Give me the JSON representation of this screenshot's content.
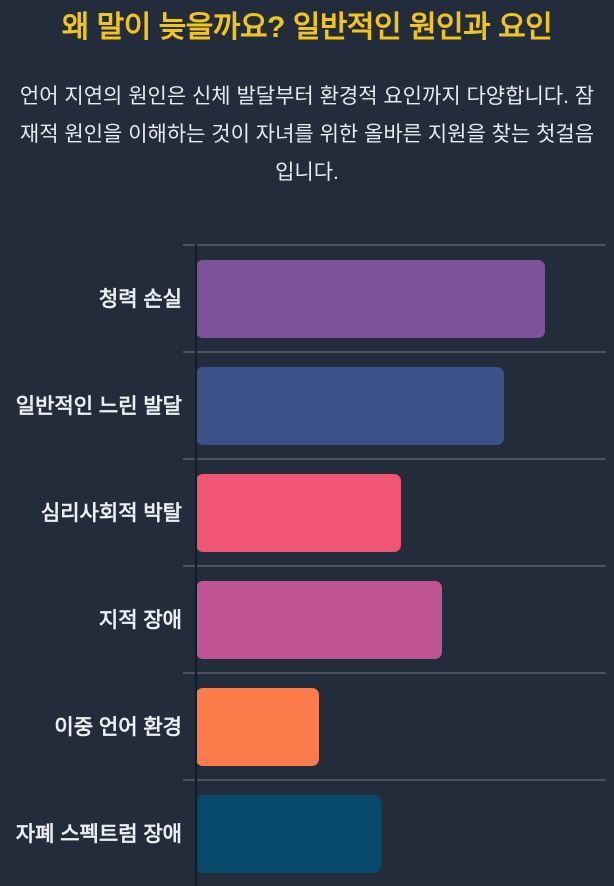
{
  "page": {
    "background_color": "#222c3a",
    "title": "왜 말이 늦을까요? 일반적인 원인과 요인",
    "title_color": "#f2c41e",
    "subtitle": "언어 지연의 원인은 신체 발달부터 환경적 요인까지 다양합니다. 잠재적 원인을 이해하는 것이 자녀를 위한 올바른 지원을 찾는 첫걸음입니다."
  },
  "chart_data": {
    "type": "bar",
    "orientation": "horizontal",
    "title": "왜 말이 늦을까요? 일반적인 원인과 요인",
    "xlabel": "",
    "ylabel": "",
    "categories": [
      "청력 손실",
      "일반적인 느린 발달",
      "심리사회적 박탈",
      "지적 장애",
      "이중 언어 환경",
      "자폐 스펙트럼 장애"
    ],
    "values": [
      34,
      30,
      20,
      24,
      12,
      18
    ],
    "values_are_estimates_from_bar_lengths": true,
    "xlim": [
      0,
      40
    ],
    "bar_colors": [
      "#7c5299",
      "#3b5187",
      "#f05574",
      "#c05394",
      "#fd7b4b",
      "#07496a"
    ],
    "grid": "horizontal row separator lines, no x-axis tick labels",
    "legend": "none",
    "separator_color": "#495260",
    "axis_line_color": "#151b27",
    "label_color": "#eceef1"
  }
}
